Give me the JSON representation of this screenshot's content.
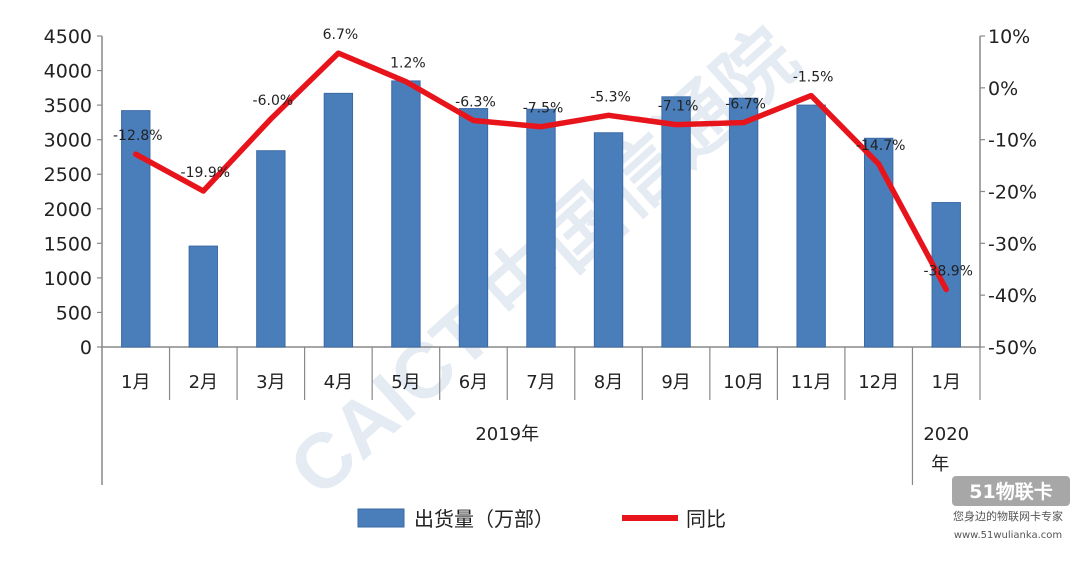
{
  "chart_data": {
    "type": "bar",
    "categories": [
      "1月",
      "2月",
      "3月",
      "4月",
      "5月",
      "6月",
      "7月",
      "8月",
      "9月",
      "10月",
      "11月",
      "12月",
      "1月"
    ],
    "groups": [
      "2019年",
      "2020年"
    ],
    "series": [
      {
        "name": "出货量（万部）",
        "type": "bar",
        "axis": "left",
        "color": "#4a7ebb",
        "values": [
          3420,
          1460,
          2840,
          3670,
          3850,
          3450,
          3440,
          3100,
          3620,
          3600,
          3500,
          3020,
          2090
        ]
      },
      {
        "name": "同比",
        "type": "line",
        "axis": "right",
        "color": "#e8141c",
        "values": [
          -12.8,
          -19.9,
          -6.0,
          6.7,
          1.2,
          -6.3,
          -7.5,
          -5.3,
          -7.1,
          -6.7,
          -1.5,
          -14.7,
          -38.9
        ],
        "labels": [
          "-12.8%",
          "-19.9%",
          "-6.0%",
          "6.7%",
          "1.2%",
          "-6.3%",
          "-7.5%",
          "-5.3%",
          "-7.1%",
          "-6.7%",
          "-1.5%",
          "-14.7%",
          "-38.9%"
        ]
      }
    ],
    "left_axis": {
      "ylim": [
        0,
        4500
      ],
      "ticks": [
        "0",
        "500",
        "1000",
        "1500",
        "2000",
        "2500",
        "3000",
        "3500",
        "4000",
        "4500"
      ]
    },
    "right_axis": {
      "ylim": [
        -50,
        10
      ],
      "ticks": [
        "-50%",
        "-40%",
        "-30%",
        "-20%",
        "-10%",
        "0%",
        "10%"
      ]
    },
    "grid": false,
    "legend_position": "bottom"
  },
  "watermark": {
    "text": "CAICT 中国信通院",
    "badge_text": "51物联卡",
    "badge_subtext": "您身边的物联网卡专家",
    "badge_url": "www.51wulianka.com"
  }
}
